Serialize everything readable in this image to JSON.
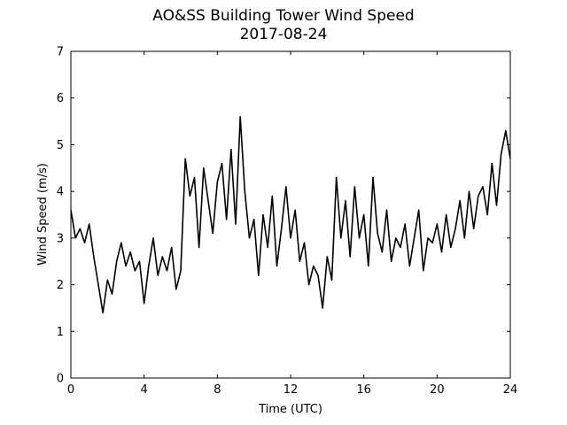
{
  "chart_data": {
    "type": "line",
    "title": "AO&SS Building Tower Wind Speed",
    "subtitle": "2017-08-24",
    "xlabel": "Time (UTC)",
    "ylabel": "Wind Speed (m/s)",
    "xlim": [
      0,
      24
    ],
    "ylim": [
      0,
      7
    ],
    "xticks": [
      0,
      4,
      8,
      12,
      16,
      20,
      24
    ],
    "yticks": [
      0,
      1,
      2,
      3,
      4,
      5,
      6,
      7
    ],
    "grid": false,
    "series": [
      {
        "color": "#000000",
        "x": [
          0,
          0.25,
          0.5,
          0.75,
          1,
          1.25,
          1.5,
          1.75,
          2,
          2.25,
          2.5,
          2.75,
          3,
          3.25,
          3.5,
          3.75,
          4,
          4.25,
          4.5,
          4.75,
          5,
          5.25,
          5.5,
          5.75,
          6,
          6.25,
          6.5,
          6.75,
          7,
          7.25,
          7.5,
          7.75,
          8,
          8.25,
          8.5,
          8.75,
          9,
          9.25,
          9.5,
          9.75,
          10,
          10.25,
          10.5,
          10.75,
          11,
          11.25,
          11.5,
          11.75,
          12,
          12.25,
          12.5,
          12.75,
          13,
          13.25,
          13.5,
          13.75,
          14,
          14.25,
          14.5,
          14.75,
          15,
          15.25,
          15.5,
          15.75,
          16,
          16.25,
          16.5,
          16.75,
          17,
          17.25,
          17.5,
          17.75,
          18,
          18.25,
          18.5,
          18.75,
          19,
          19.25,
          19.5,
          19.75,
          20,
          20.25,
          20.5,
          20.75,
          21,
          21.25,
          21.5,
          21.75,
          22,
          22.25,
          22.5,
          22.75,
          23,
          23.25,
          23.5,
          23.75,
          24
        ],
        "values": [
          3.6,
          3.0,
          3.2,
          2.9,
          3.3,
          2.6,
          2.0,
          1.4,
          2.1,
          1.8,
          2.5,
          2.9,
          2.4,
          2.7,
          2.3,
          2.5,
          1.6,
          2.4,
          3.0,
          2.2,
          2.6,
          2.3,
          2.8,
          1.9,
          2.3,
          4.7,
          3.9,
          4.3,
          2.8,
          4.5,
          3.8,
          3.1,
          4.2,
          4.6,
          3.4,
          4.9,
          3.3,
          5.6,
          4.0,
          3.0,
          3.4,
          2.2,
          3.5,
          2.8,
          3.9,
          2.4,
          3.2,
          4.1,
          3.0,
          3.6,
          2.5,
          2.9,
          2.0,
          2.4,
          2.2,
          1.5,
          2.6,
          2.1,
          4.3,
          3.0,
          3.8,
          2.6,
          4.1,
          3.0,
          3.5,
          2.4,
          4.3,
          3.1,
          2.7,
          3.6,
          2.5,
          3.0,
          2.8,
          3.3,
          2.4,
          3.0,
          3.6,
          2.3,
          3.0,
          2.9,
          3.3,
          2.7,
          3.5,
          2.8,
          3.2,
          3.8,
          3.0,
          4.0,
          3.2,
          3.9,
          4.1,
          3.5,
          4.6,
          3.7,
          4.8,
          5.3,
          4.7
        ]
      }
    ]
  }
}
